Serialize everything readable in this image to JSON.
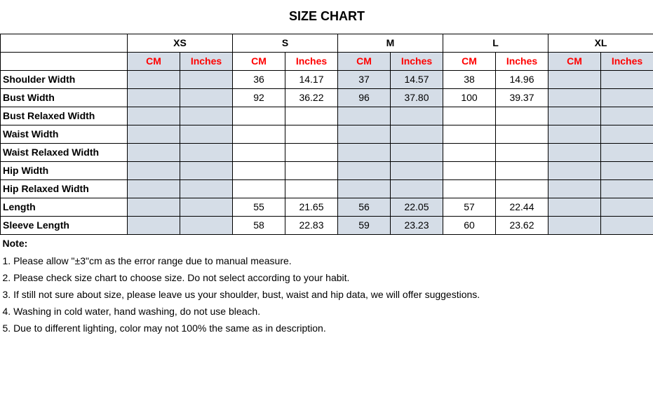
{
  "title": "SIZE CHART",
  "sizes": [
    "XS",
    "S",
    "M",
    "L",
    "XL"
  ],
  "units": {
    "cm": "CM",
    "in": "Inches"
  },
  "shaded_sizes": [
    "XS",
    "M",
    "XL"
  ],
  "unit_color": "#ff0000",
  "shade_color": "#d5dde7",
  "border_color": "#000000",
  "bg_color": "#ffffff",
  "title_fontsize": 18,
  "cell_fontsize": 14,
  "rows": [
    {
      "label": "Shoulder Width",
      "XS": {
        "cm": "",
        "in": ""
      },
      "S": {
        "cm": "36",
        "in": "14.17"
      },
      "M": {
        "cm": "37",
        "in": "14.57"
      },
      "L": {
        "cm": "38",
        "in": "14.96"
      },
      "XL": {
        "cm": "",
        "in": ""
      }
    },
    {
      "label": "Bust Width",
      "XS": {
        "cm": "",
        "in": ""
      },
      "S": {
        "cm": "92",
        "in": "36.22"
      },
      "M": {
        "cm": "96",
        "in": "37.80"
      },
      "L": {
        "cm": "100",
        "in": "39.37"
      },
      "XL": {
        "cm": "",
        "in": ""
      }
    },
    {
      "label": "Bust Relaxed Width",
      "XS": {
        "cm": "",
        "in": ""
      },
      "S": {
        "cm": "",
        "in": ""
      },
      "M": {
        "cm": "",
        "in": ""
      },
      "L": {
        "cm": "",
        "in": ""
      },
      "XL": {
        "cm": "",
        "in": ""
      }
    },
    {
      "label": "Waist Width",
      "XS": {
        "cm": "",
        "in": ""
      },
      "S": {
        "cm": "",
        "in": ""
      },
      "M": {
        "cm": "",
        "in": ""
      },
      "L": {
        "cm": "",
        "in": ""
      },
      "XL": {
        "cm": "",
        "in": ""
      }
    },
    {
      "label": "Waist Relaxed Width",
      "XS": {
        "cm": "",
        "in": ""
      },
      "S": {
        "cm": "",
        "in": ""
      },
      "M": {
        "cm": "",
        "in": ""
      },
      "L": {
        "cm": "",
        "in": ""
      },
      "XL": {
        "cm": "",
        "in": ""
      }
    },
    {
      "label": "Hip Width",
      "XS": {
        "cm": "",
        "in": ""
      },
      "S": {
        "cm": "",
        "in": ""
      },
      "M": {
        "cm": "",
        "in": ""
      },
      "L": {
        "cm": "",
        "in": ""
      },
      "XL": {
        "cm": "",
        "in": ""
      }
    },
    {
      "label": "Hip Relaxed Width",
      "XS": {
        "cm": "",
        "in": ""
      },
      "S": {
        "cm": "",
        "in": ""
      },
      "M": {
        "cm": "",
        "in": ""
      },
      "L": {
        "cm": "",
        "in": ""
      },
      "XL": {
        "cm": "",
        "in": ""
      }
    },
    {
      "label": "Length",
      "XS": {
        "cm": "",
        "in": ""
      },
      "S": {
        "cm": "55",
        "in": "21.65"
      },
      "M": {
        "cm": "56",
        "in": "22.05"
      },
      "L": {
        "cm": "57",
        "in": "22.44"
      },
      "XL": {
        "cm": "",
        "in": ""
      }
    },
    {
      "label": "Sleeve Length",
      "XS": {
        "cm": "",
        "in": ""
      },
      "S": {
        "cm": "58",
        "in": "22.83"
      },
      "M": {
        "cm": "59",
        "in": "23.23"
      },
      "L": {
        "cm": "60",
        "in": "23.62"
      },
      "XL": {
        "cm": "",
        "in": ""
      }
    }
  ],
  "notes": {
    "heading": "Note:",
    "lines": [
      "1. Please allow \"±3\"cm as the error range due to manual measure.",
      "2. Please check size chart to choose size. Do not select according to your habit.",
      "3. If still not sure about size, please leave us your shoulder, bust, waist and hip data, we will offer suggestions.",
      "4. Washing in cold water, hand washing, do not use bleach.",
      "5. Due to different lighting, color may not 100% the same as in description."
    ]
  }
}
